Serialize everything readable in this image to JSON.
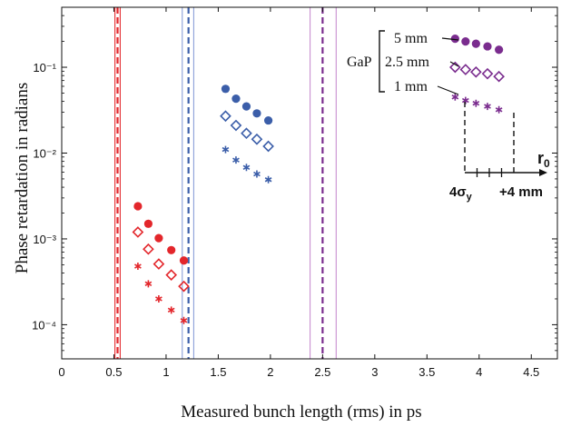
{
  "chart_data": {
    "type": "scatter",
    "title": "",
    "xlabel": "Measured bunch length (rms) in ps",
    "ylabel": "Phase retardation in radians",
    "x_scale": "linear",
    "y_scale": "log",
    "xlim": [
      0,
      4.75
    ],
    "ylim": [
      4e-05,
      0.5
    ],
    "x_ticks": [
      0,
      0.5,
      1,
      1.5,
      2,
      2.5,
      3,
      3.5,
      4,
      4.5
    ],
    "x_tick_labels": [
      "0",
      "0.5",
      "1",
      "1.5",
      "2",
      "2.5",
      "3",
      "3.5",
      "4",
      "4.5"
    ],
    "y_ticks": [
      0.0001,
      0.001,
      0.01,
      0.1
    ],
    "y_tick_labels": [
      "10⁻⁴",
      "10⁻³",
      "10⁻²",
      "10⁻¹"
    ],
    "grid": false,
    "colors": {
      "red": "#e3262b",
      "blue": "#3b5ea9",
      "purple": "#7a2c8e",
      "light_blue": "#8c9fd8",
      "light_purple": "#c98fd0"
    },
    "series": [
      {
        "color_key": "red",
        "marker": "dot",
        "x": [
          0.73,
          0.83,
          0.93,
          1.05,
          1.17
        ],
        "y": [
          0.0024,
          0.0015,
          0.00102,
          0.00074,
          0.00056
        ]
      },
      {
        "color_key": "red",
        "marker": "diamond",
        "x": [
          0.73,
          0.83,
          0.93,
          1.05,
          1.17
        ],
        "y": [
          0.0012,
          0.00076,
          0.00051,
          0.00038,
          0.00028
        ]
      },
      {
        "color_key": "red",
        "marker": "asterisk",
        "x": [
          0.73,
          0.83,
          0.93,
          1.05,
          1.17
        ],
        "y": [
          0.00048,
          0.0003,
          0.0002,
          0.000148,
          0.000112
        ]
      },
      {
        "color_key": "blue",
        "marker": "dot",
        "x": [
          1.57,
          1.67,
          1.77,
          1.87,
          1.98
        ],
        "y": [
          0.056,
          0.043,
          0.035,
          0.029,
          0.024
        ]
      },
      {
        "color_key": "blue",
        "marker": "diamond",
        "x": [
          1.57,
          1.67,
          1.77,
          1.87,
          1.98
        ],
        "y": [
          0.027,
          0.021,
          0.017,
          0.0145,
          0.012
        ]
      },
      {
        "color_key": "blue",
        "marker": "asterisk",
        "x": [
          1.57,
          1.67,
          1.77,
          1.87,
          1.98
        ],
        "y": [
          0.011,
          0.0083,
          0.0068,
          0.0057,
          0.0049
        ]
      },
      {
        "color_key": "purple",
        "marker": "dot",
        "x": [
          3.77,
          3.87,
          3.97,
          4.08,
          4.19
        ],
        "y": [
          0.215,
          0.2,
          0.188,
          0.175,
          0.16
        ]
      },
      {
        "color_key": "purple",
        "marker": "diamond",
        "x": [
          3.77,
          3.87,
          3.97,
          4.08,
          4.19
        ],
        "y": [
          0.1,
          0.094,
          0.088,
          0.084,
          0.078
        ]
      },
      {
        "color_key": "purple",
        "marker": "asterisk",
        "x": [
          3.77,
          3.87,
          3.97,
          4.08,
          4.19
        ],
        "y": [
          0.045,
          0.041,
          0.038,
          0.035,
          0.032
        ]
      }
    ],
    "vertical_lines": [
      {
        "x": 0.51,
        "color_key": "red",
        "style": "solid"
      },
      {
        "x": 0.535,
        "color_key": "red",
        "style": "dashed"
      },
      {
        "x": 0.56,
        "color_key": "red",
        "style": "solid"
      },
      {
        "x": 1.155,
        "color_key": "light_blue",
        "style": "solid"
      },
      {
        "x": 1.215,
        "color_key": "blue",
        "style": "dashed"
      },
      {
        "x": 1.265,
        "color_key": "light_blue",
        "style": "solid"
      },
      {
        "x": 2.38,
        "color_key": "light_purple",
        "style": "solid"
      },
      {
        "x": 2.5,
        "color_key": "purple",
        "style": "dashed"
      },
      {
        "x": 2.63,
        "color_key": "light_purple",
        "style": "solid"
      }
    ],
    "annotations": {
      "material": "GaP",
      "thickness_5": "5 mm",
      "thickness_2_5": "2.5 mm",
      "thickness_1": "1 mm",
      "r0_base": "r",
      "r0_sub": "0",
      "sigma_label_main": "4σ",
      "sigma_label_sub": "y",
      "offset_label": "+4 mm"
    }
  }
}
